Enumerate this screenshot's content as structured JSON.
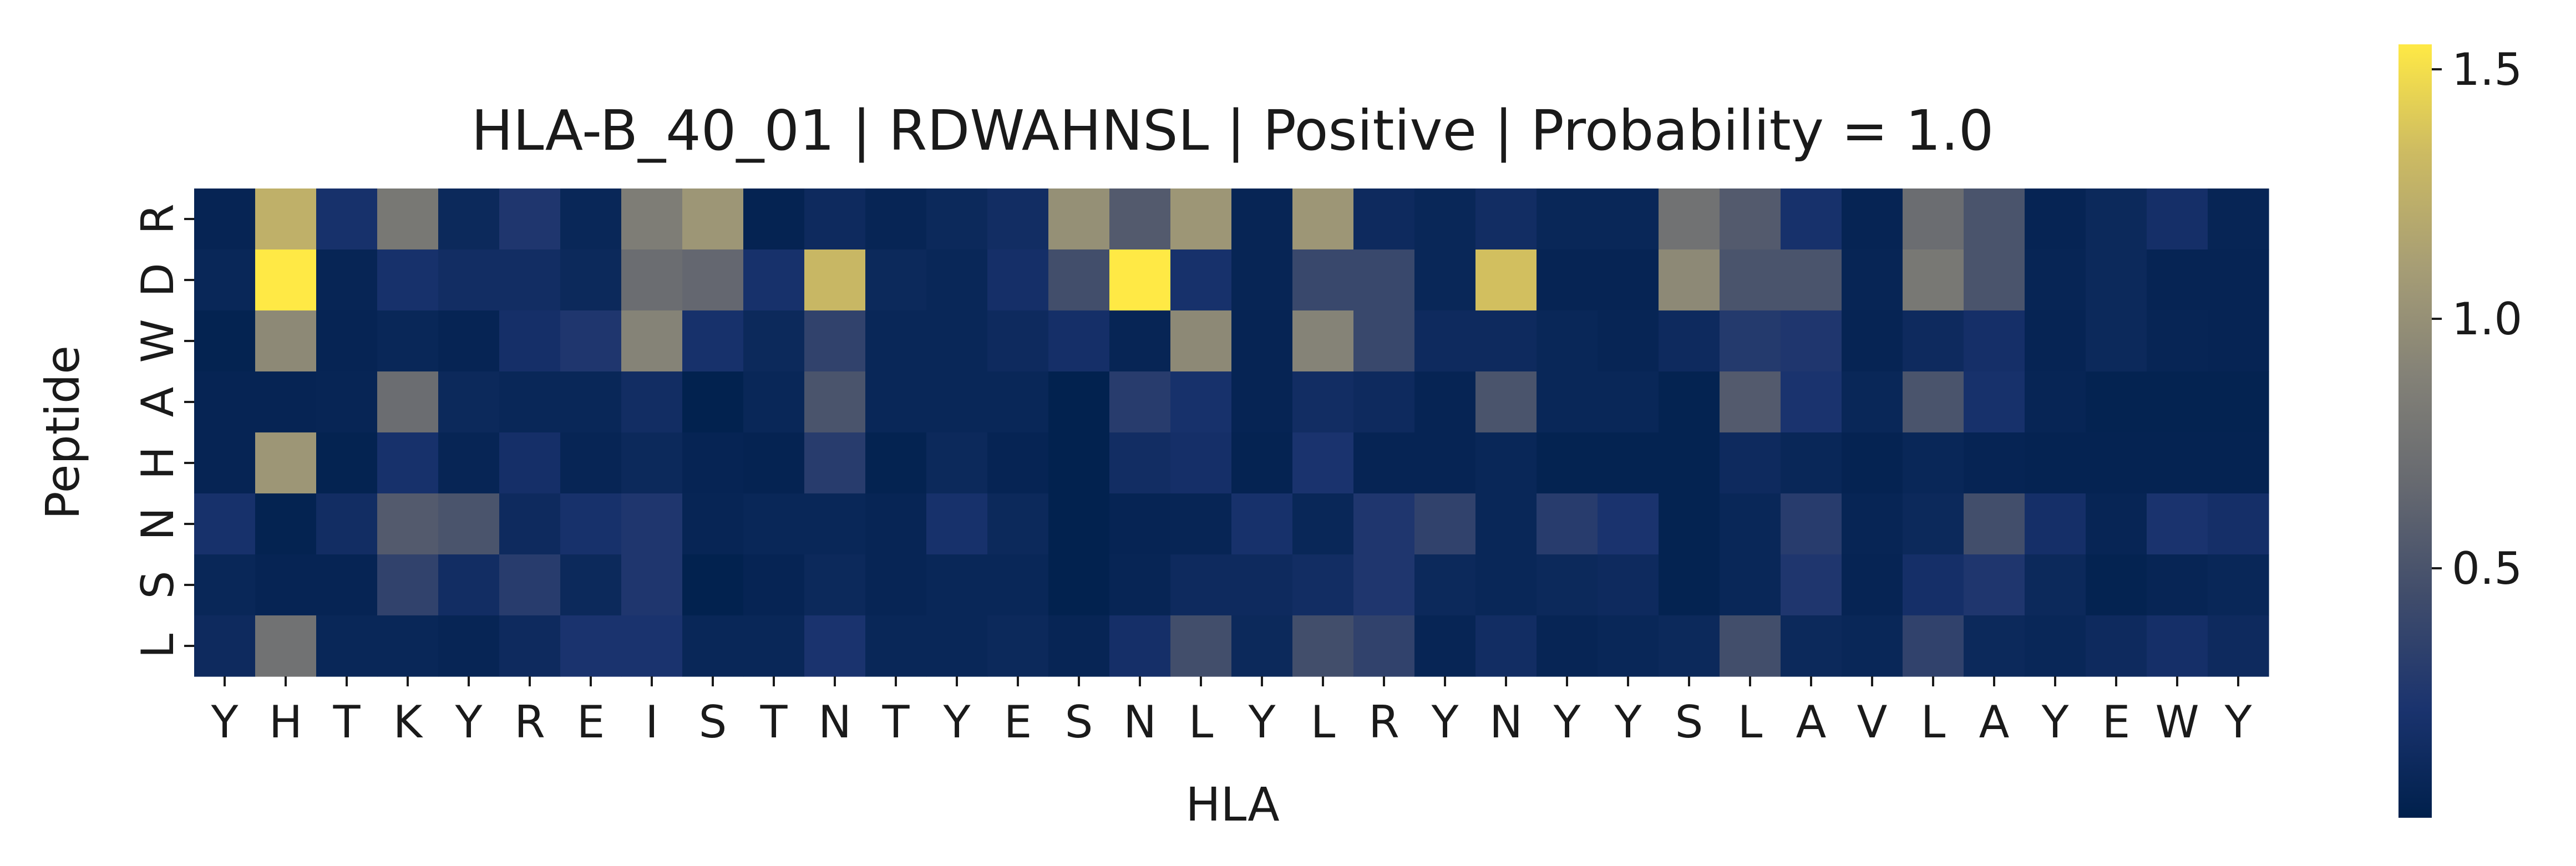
{
  "chart_data": {
    "type": "heatmap",
    "title": "HLA-B_40_01 | RDWAHNSL | Positive | Probability = 1.0",
    "xlabel": "HLA",
    "ylabel": "Peptide",
    "x_categories": [
      "Y",
      "H",
      "T",
      "K",
      "Y",
      "R",
      "E",
      "I",
      "S",
      "T",
      "N",
      "T",
      "Y",
      "E",
      "S",
      "N",
      "L",
      "Y",
      "L",
      "R",
      "Y",
      "N",
      "Y",
      "Y",
      "S",
      "L",
      "A",
      "V",
      "L",
      "A",
      "Y",
      "E",
      "W",
      "Y"
    ],
    "y_categories": [
      "R",
      "D",
      "W",
      "A",
      "H",
      "N",
      "S",
      "L"
    ],
    "values": [
      [
        0.05,
        1.25,
        0.2,
        0.8,
        0.1,
        0.25,
        0.08,
        0.85,
        1.05,
        0.04,
        0.12,
        0.06,
        0.1,
        0.15,
        1.0,
        0.55,
        1.05,
        0.06,
        1.05,
        0.12,
        0.08,
        0.15,
        0.08,
        0.08,
        0.75,
        0.55,
        0.2,
        0.05,
        0.7,
        0.5,
        0.05,
        0.1,
        0.18,
        0.06
      ],
      [
        0.08,
        1.55,
        0.06,
        0.2,
        0.15,
        0.15,
        0.1,
        0.7,
        0.65,
        0.2,
        1.3,
        0.1,
        0.08,
        0.18,
        0.45,
        1.55,
        0.2,
        0.06,
        0.4,
        0.4,
        0.08,
        1.35,
        0.05,
        0.05,
        0.95,
        0.5,
        0.5,
        0.06,
        0.8,
        0.5,
        0.06,
        0.1,
        0.05,
        0.05
      ],
      [
        0.03,
        0.95,
        0.05,
        0.08,
        0.05,
        0.18,
        0.25,
        0.9,
        0.2,
        0.1,
        0.35,
        0.08,
        0.08,
        0.12,
        0.18,
        0.06,
        0.95,
        0.05,
        0.9,
        0.4,
        0.12,
        0.12,
        0.08,
        0.06,
        0.12,
        0.28,
        0.25,
        0.05,
        0.12,
        0.18,
        0.05,
        0.1,
        0.06,
        0.05
      ],
      [
        0.05,
        0.05,
        0.06,
        0.7,
        0.1,
        0.08,
        0.08,
        0.15,
        0.02,
        0.08,
        0.5,
        0.08,
        0.08,
        0.08,
        0.02,
        0.3,
        0.2,
        0.05,
        0.15,
        0.12,
        0.05,
        0.5,
        0.08,
        0.08,
        0.03,
        0.55,
        0.22,
        0.08,
        0.5,
        0.2,
        0.06,
        0.03,
        0.03,
        0.03
      ],
      [
        0.05,
        1.05,
        0.03,
        0.2,
        0.06,
        0.18,
        0.06,
        0.1,
        0.05,
        0.04,
        0.3,
        0.03,
        0.1,
        0.05,
        0.02,
        0.15,
        0.18,
        0.04,
        0.22,
        0.05,
        0.05,
        0.08,
        0.03,
        0.03,
        0.03,
        0.12,
        0.08,
        0.04,
        0.08,
        0.05,
        0.04,
        0.04,
        0.04,
        0.04
      ],
      [
        0.2,
        0.03,
        0.15,
        0.55,
        0.5,
        0.12,
        0.2,
        0.25,
        0.06,
        0.08,
        0.08,
        0.06,
        0.2,
        0.1,
        0.02,
        0.05,
        0.06,
        0.2,
        0.08,
        0.25,
        0.35,
        0.08,
        0.3,
        0.22,
        0.03,
        0.08,
        0.3,
        0.06,
        0.1,
        0.45,
        0.18,
        0.06,
        0.22,
        0.18
      ],
      [
        0.08,
        0.05,
        0.05,
        0.35,
        0.15,
        0.3,
        0.1,
        0.25,
        0.02,
        0.05,
        0.1,
        0.06,
        0.08,
        0.08,
        0.02,
        0.06,
        0.12,
        0.12,
        0.15,
        0.25,
        0.1,
        0.08,
        0.1,
        0.12,
        0.03,
        0.08,
        0.25,
        0.05,
        0.18,
        0.25,
        0.1,
        0.03,
        0.06,
        0.08
      ],
      [
        0.12,
        0.75,
        0.08,
        0.08,
        0.06,
        0.12,
        0.22,
        0.22,
        0.08,
        0.08,
        0.22,
        0.08,
        0.08,
        0.1,
        0.06,
        0.18,
        0.45,
        0.1,
        0.45,
        0.35,
        0.06,
        0.15,
        0.06,
        0.08,
        0.1,
        0.45,
        0.1,
        0.08,
        0.35,
        0.1,
        0.08,
        0.12,
        0.18,
        0.12
      ]
    ],
    "vmin": 0.0,
    "vmax": 1.55,
    "colormap": "cividis",
    "colorbar": {
      "ticks": [
        0.5,
        1.0,
        1.5
      ],
      "tick_labels": [
        "0.5",
        "1.0",
        "1.5"
      ]
    },
    "grid": false,
    "legend": "right colorbar"
  }
}
